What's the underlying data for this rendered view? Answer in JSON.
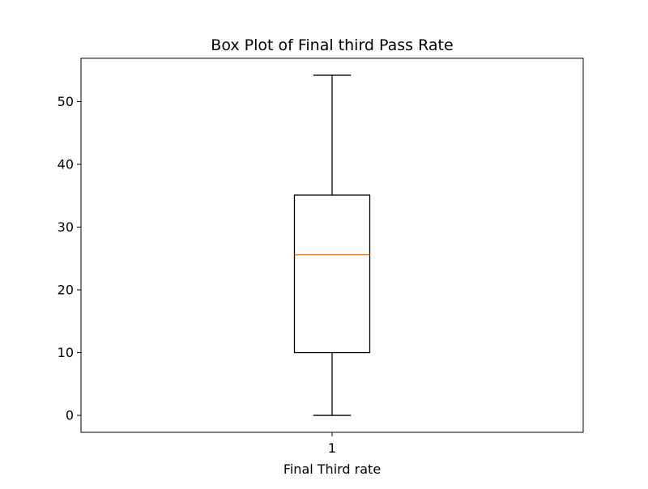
{
  "chart_data": {
    "type": "box",
    "title": "Box Plot of Final third Pass Rate",
    "xlabel": "Final Third rate",
    "ylabel": "",
    "categories": [
      "1"
    ],
    "boxes": [
      {
        "label": "1",
        "whisker_low": 0,
        "q1": 10,
        "median": 25.6,
        "q3": 35.1,
        "whisker_high": 54.2
      }
    ],
    "ylim": [
      -2.7,
      56.9
    ],
    "yticks": [
      0,
      10,
      20,
      30,
      40,
      50
    ],
    "grid": false,
    "colors": {
      "box": "#000000",
      "median": "#ff7f0e",
      "axes": "#000000"
    }
  }
}
